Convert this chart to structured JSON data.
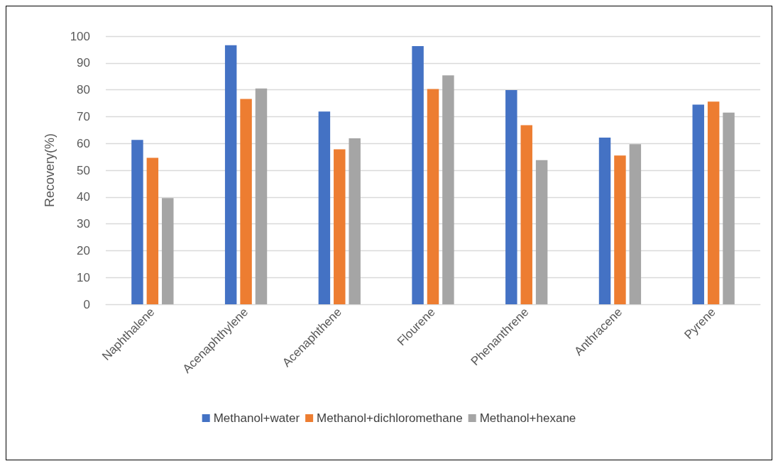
{
  "chart_data": {
    "type": "bar",
    "ylabel": "Recovery(%)",
    "categories": [
      "Naphthalene",
      "Acenaphthylene",
      "Acenaphthene",
      "Flourene",
      "Phenanthrene",
      "Anthracene",
      "Pyrene"
    ],
    "series": [
      {
        "name": "Methanol+water",
        "color": "#4472c4",
        "values": [
          61.3,
          96.6,
          71.9,
          96.3,
          79.9,
          62.2,
          74.5
        ]
      },
      {
        "name": "Methanol+dichloromethane",
        "color": "#ed7d31",
        "values": [
          54.6,
          76.6,
          57.8,
          80.3,
          66.8,
          55.5,
          75.6
        ]
      },
      {
        "name": "Methanol+hexane",
        "color": "#a5a5a5",
        "values": [
          39.6,
          80.5,
          61.9,
          85.4,
          53.8,
          59.7,
          71.5
        ]
      }
    ],
    "ylim": [
      0,
      100
    ],
    "yticks": [
      0,
      10,
      20,
      30,
      40,
      50,
      60,
      70,
      80,
      90,
      100
    ],
    "grid": "y",
    "legend": "bottom"
  }
}
